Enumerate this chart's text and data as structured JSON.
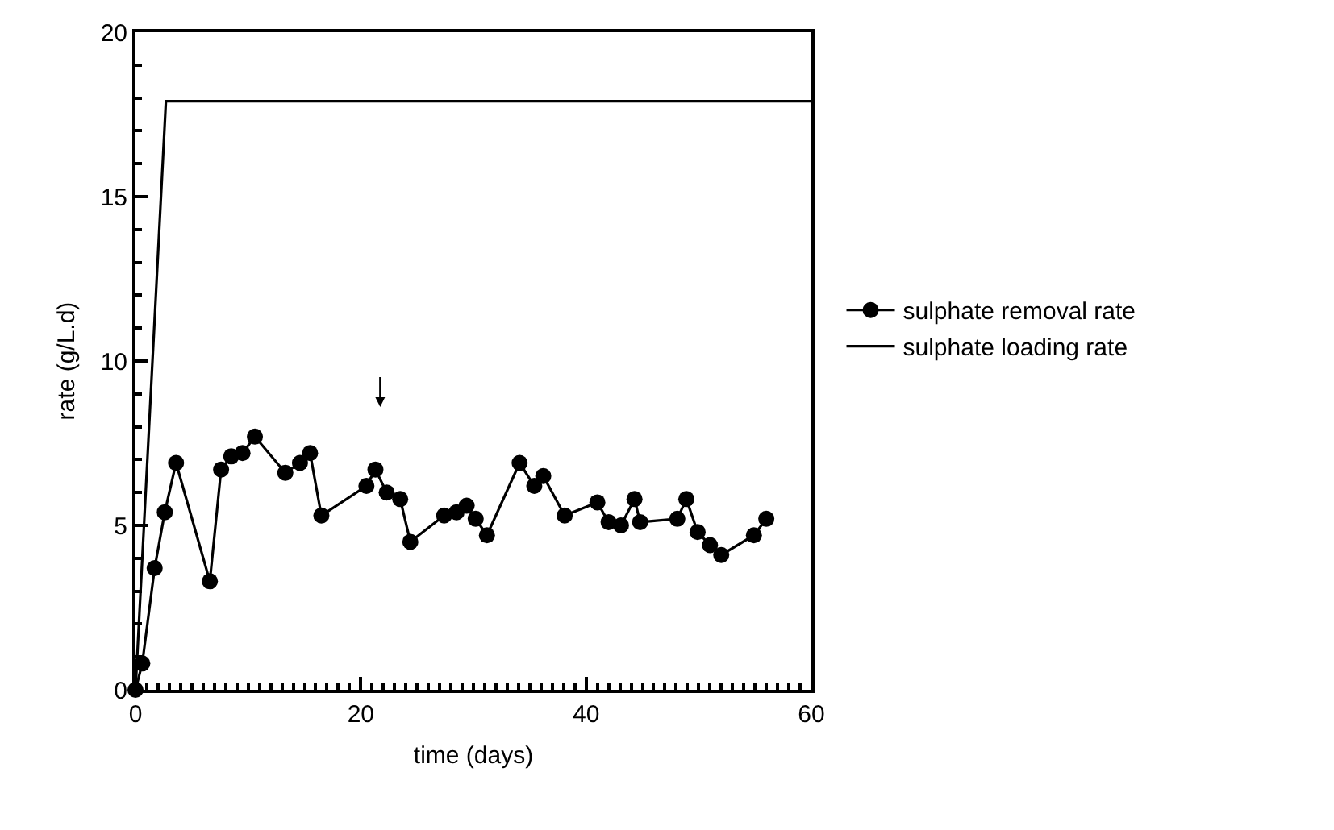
{
  "chart_data": {
    "type": "line",
    "xlabel": "time (days)",
    "ylabel": "rate (g/L.d)",
    "xlim": [
      0,
      60
    ],
    "ylim": [
      0,
      20
    ],
    "xticks": [
      0,
      20,
      40,
      60
    ],
    "yticks": [
      0,
      5,
      10,
      15,
      20
    ],
    "grid": false,
    "legend": "right",
    "line_style": "solid",
    "series": [
      {
        "name": "sulphate removal rate",
        "color": "#000000",
        "marker": "circle",
        "x": [
          0,
          0.6,
          1.7,
          2.6,
          3.6,
          6.6,
          7.6,
          8.5,
          9.5,
          10.6,
          13.3,
          14.6,
          15.5,
          16.5,
          20.5,
          21.3,
          22.3,
          23.5,
          24.4,
          27.4,
          28.5,
          29.4,
          30.2,
          31.2,
          34.1,
          35.4,
          36.2,
          38.1,
          41.0,
          42.0,
          43.1,
          44.3,
          44.8,
          48.1,
          48.9,
          49.9,
          51.0,
          52.0,
          54.9,
          56.0
        ],
        "values": [
          0,
          0.8,
          3.7,
          5.4,
          6.9,
          3.3,
          6.7,
          7.1,
          7.2,
          7.7,
          6.6,
          6.9,
          7.2,
          5.3,
          6.2,
          6.7,
          6.0,
          5.8,
          4.5,
          5.3,
          5.4,
          5.6,
          5.2,
          4.7,
          6.9,
          6.2,
          6.5,
          5.3,
          5.7,
          5.1,
          5.0,
          5.8,
          5.1,
          5.2,
          5.8,
          4.8,
          4.4,
          4.1,
          4.7,
          5.2
        ]
      },
      {
        "name": "sulphate loading rate",
        "color": "#000000",
        "marker": "none",
        "x": [
          0,
          2.7,
          60
        ],
        "values": [
          0,
          17.9,
          17.9
        ]
      }
    ]
  }
}
